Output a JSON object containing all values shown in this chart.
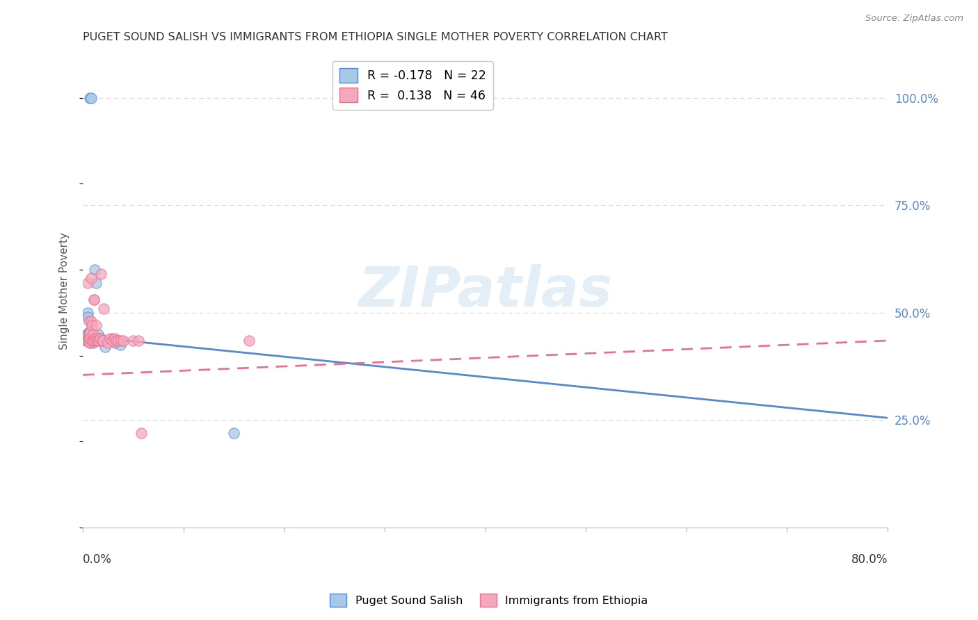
{
  "title": "PUGET SOUND SALISH VS IMMIGRANTS FROM ETHIOPIA SINGLE MOTHER POVERTY CORRELATION CHART",
  "source": "Source: ZipAtlas.com",
  "ylabel": "Single Mother Poverty",
  "watermark": "ZIPatlas",
  "legend_label1": "Puget Sound Salish",
  "legend_label2": "Immigrants from Ethiopia",
  "R1": -0.178,
  "N1": 22,
  "R2": 0.138,
  "N2": 46,
  "color1": "#a8c8e8",
  "color2": "#f4a8bc",
  "line_color1": "#5588cc",
  "line_color2": "#e87090",
  "blue_x": [
    0.007,
    0.008,
    0.003,
    0.005,
    0.005,
    0.006,
    0.004,
    0.006,
    0.006,
    0.007,
    0.007,
    0.008,
    0.01,
    0.012,
    0.013,
    0.015,
    0.016,
    0.018,
    0.022,
    0.032,
    0.037,
    0.15
  ],
  "blue_y": [
    1.0,
    1.0,
    0.44,
    0.5,
    0.49,
    0.455,
    0.45,
    0.455,
    0.45,
    0.44,
    0.43,
    0.44,
    0.43,
    0.6,
    0.57,
    0.45,
    0.44,
    0.44,
    0.42,
    0.43,
    0.425,
    0.22
  ],
  "pink_x": [
    0.003,
    0.003,
    0.004,
    0.005,
    0.005,
    0.005,
    0.006,
    0.006,
    0.006,
    0.007,
    0.007,
    0.007,
    0.007,
    0.008,
    0.008,
    0.009,
    0.009,
    0.01,
    0.01,
    0.011,
    0.011,
    0.012,
    0.012,
    0.013,
    0.014,
    0.014,
    0.015,
    0.016,
    0.017,
    0.018,
    0.019,
    0.02,
    0.021,
    0.025,
    0.027,
    0.03,
    0.03,
    0.032,
    0.033,
    0.035,
    0.038,
    0.04,
    0.05,
    0.055,
    0.058,
    0.165
  ],
  "pink_y": [
    0.44,
    0.435,
    0.435,
    0.57,
    0.44,
    0.435,
    0.44,
    0.45,
    0.48,
    0.43,
    0.44,
    0.455,
    0.44,
    0.48,
    0.58,
    0.435,
    0.47,
    0.435,
    0.45,
    0.53,
    0.53,
    0.44,
    0.435,
    0.47,
    0.44,
    0.435,
    0.435,
    0.435,
    0.44,
    0.59,
    0.435,
    0.435,
    0.51,
    0.43,
    0.44,
    0.44,
    0.435,
    0.44,
    0.435,
    0.435,
    0.435,
    0.435,
    0.435,
    0.435,
    0.22,
    0.435
  ],
  "blue_line_x0": 0.0,
  "blue_line_x1": 0.8,
  "blue_line_y0": 0.445,
  "blue_line_y1": 0.255,
  "pink_line_x0": 0.0,
  "pink_line_x1": 0.8,
  "pink_line_y0": 0.355,
  "pink_line_y1": 0.435,
  "xlim": [
    0.0,
    0.8
  ],
  "ylim": [
    0.0,
    1.1
  ],
  "yticks": [
    0.25,
    0.5,
    0.75,
    1.0
  ],
  "ytick_labels": [
    "25.0%",
    "50.0%",
    "75.0%",
    "100.0%"
  ],
  "xtick_positions": [
    0.0,
    0.1,
    0.2,
    0.3,
    0.4,
    0.5,
    0.6,
    0.7,
    0.8
  ],
  "figsize": [
    14.06,
    8.92
  ],
  "dpi": 100
}
